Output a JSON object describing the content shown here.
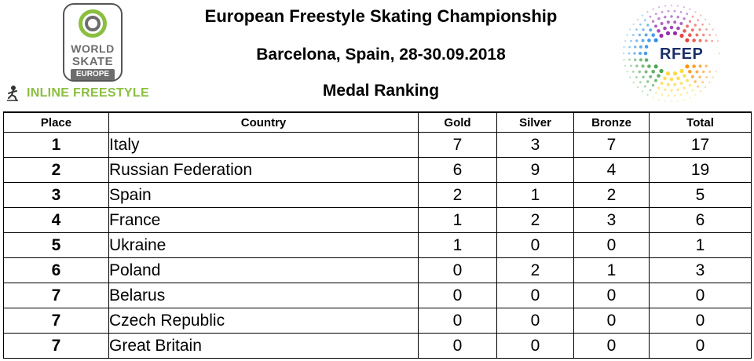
{
  "header": {
    "title": "European Freestyle Skating Championship",
    "location_date": "Barcelona, Spain, 28-30.09.2018",
    "subtitle": "Medal Ranking",
    "left_logo": {
      "line1": "WORLD",
      "line2": "SKATE",
      "line3": "EUROPE",
      "icon": "world-skate-europe-logo"
    },
    "discipline_label": "INLINE FREESTYLE",
    "discipline_icon": "skater-icon",
    "right_logo": {
      "label": "RFEP",
      "icon": "rfep-logo"
    }
  },
  "colors": {
    "accent_green": "#8bbf3f",
    "logo_grey": "#6d6d6d",
    "rfep_blue": "#1a2f6a"
  },
  "table": {
    "columns": [
      "Place",
      "Country",
      "Gold",
      "Silver",
      "Bronze",
      "Total"
    ],
    "rows": [
      {
        "place": "1",
        "country": "Italy",
        "gold": "7",
        "silver": "3",
        "bronze": "7",
        "total": "17"
      },
      {
        "place": "2",
        "country": "Russian Federation",
        "gold": "6",
        "silver": "9",
        "bronze": "4",
        "total": "19"
      },
      {
        "place": "3",
        "country": "Spain",
        "gold": "2",
        "silver": "1",
        "bronze": "2",
        "total": "5"
      },
      {
        "place": "4",
        "country": "France",
        "gold": "1",
        "silver": "2",
        "bronze": "3",
        "total": "6"
      },
      {
        "place": "5",
        "country": "Ukraine",
        "gold": "1",
        "silver": "0",
        "bronze": "0",
        "total": "1"
      },
      {
        "place": "6",
        "country": "Poland",
        "gold": "0",
        "silver": "2",
        "bronze": "1",
        "total": "3"
      },
      {
        "place": "7",
        "country": "Belarus",
        "gold": "0",
        "silver": "0",
        "bronze": "0",
        "total": "0"
      },
      {
        "place": "7",
        "country": "Czech Republic",
        "gold": "0",
        "silver": "0",
        "bronze": "0",
        "total": "0"
      },
      {
        "place": "7",
        "country": "Great Britain",
        "gold": "0",
        "silver": "0",
        "bronze": "0",
        "total": "0"
      }
    ]
  }
}
